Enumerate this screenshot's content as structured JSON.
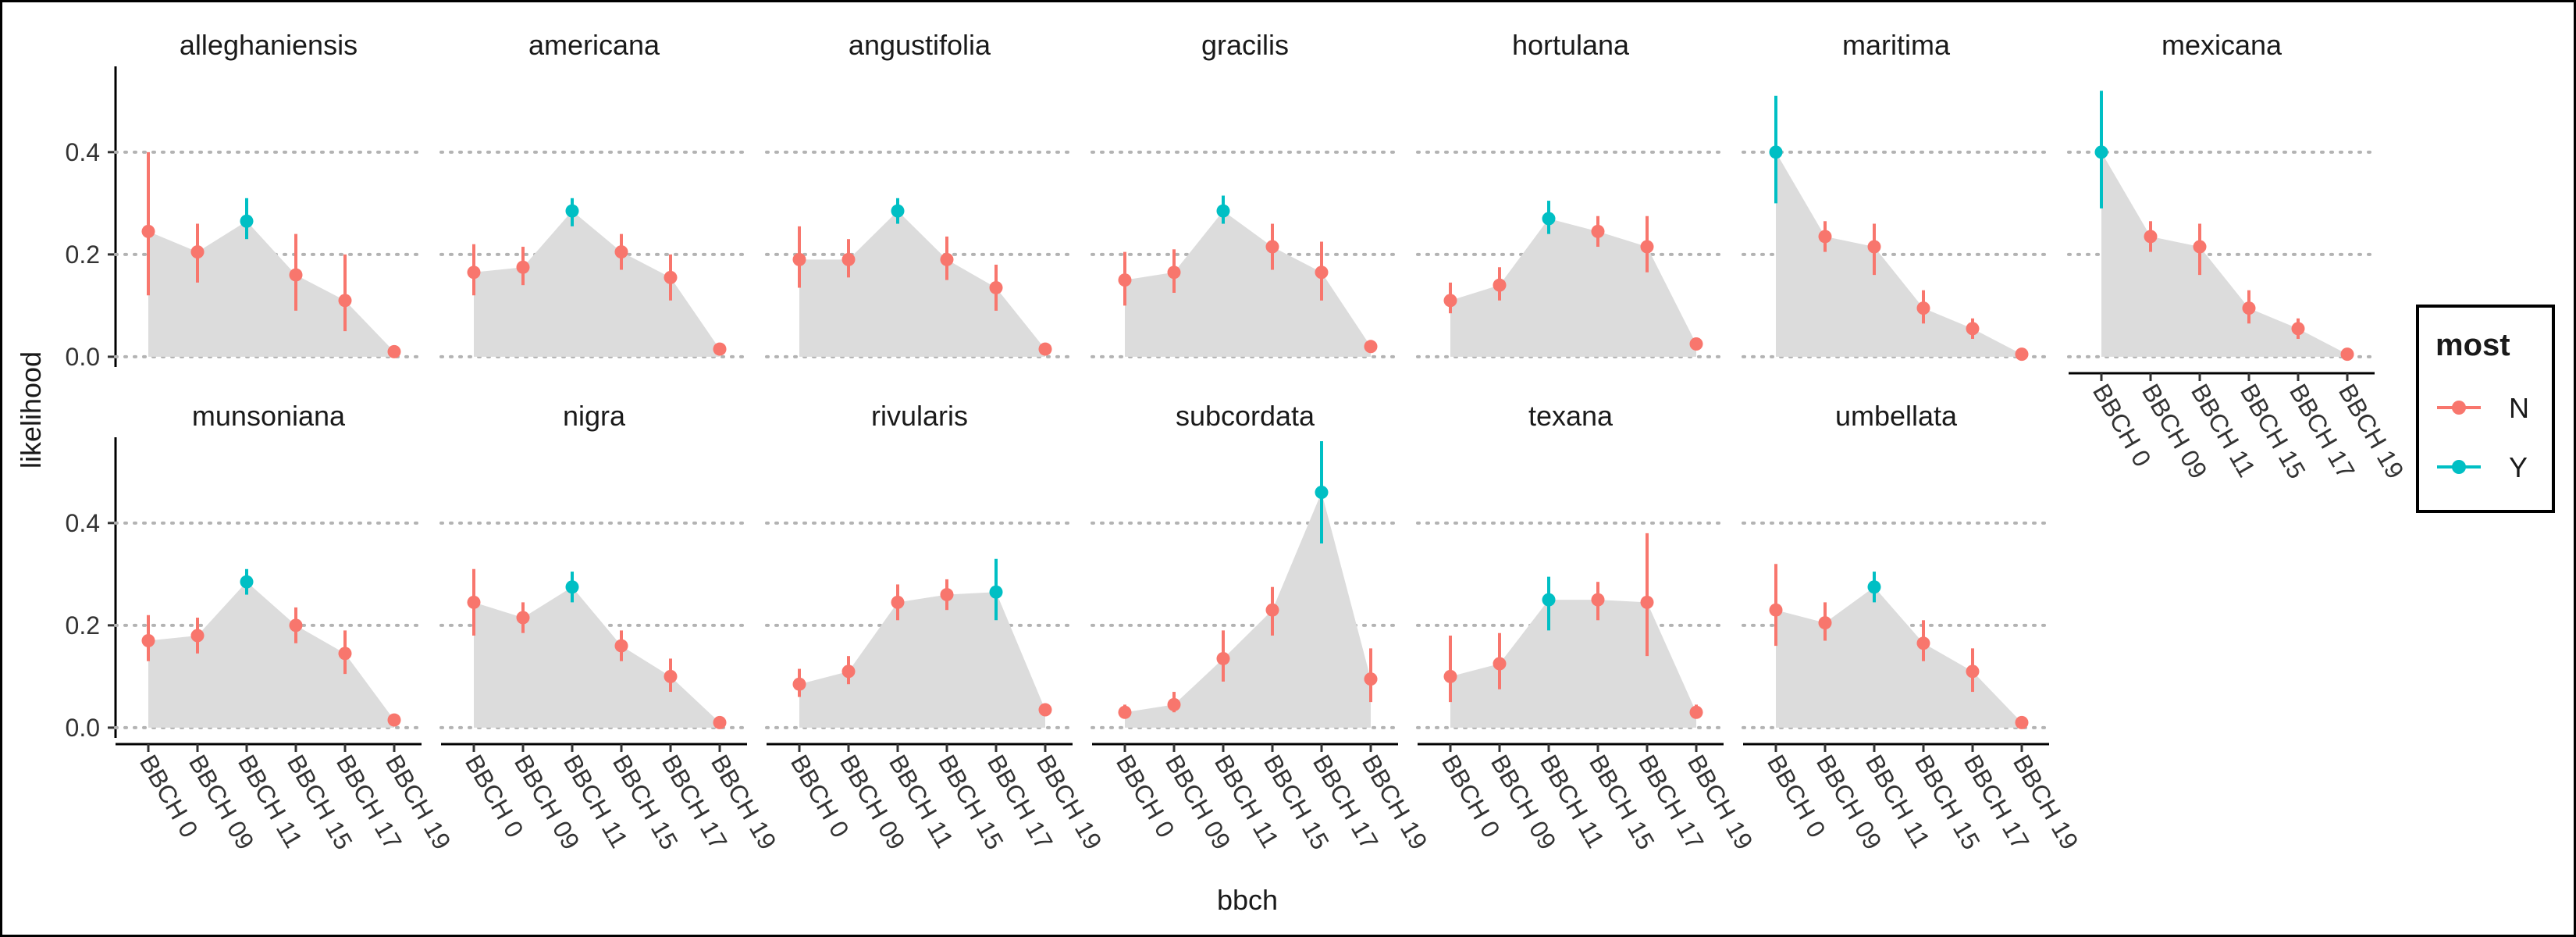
{
  "chart_data": {
    "type": "faceted-dot-range-area",
    "xlabel": "bbch",
    "ylabel": "likelihood",
    "categories": [
      "BBCH 0",
      "BBCH 09",
      "BBCH 11",
      "BBCH 15",
      "BBCH 17",
      "BBCH 19"
    ],
    "y_ticks": [
      "0.0",
      "0.2",
      "0.4"
    ],
    "ylim": [
      -0.02,
      0.56
    ],
    "grid": "dotted horizontal at 0.2 and 0.4",
    "legend": {
      "title": "most",
      "position": "right",
      "entries": [
        {
          "label": "N",
          "color": "#F8766D"
        },
        {
          "label": "Y",
          "color": "#00BFC4"
        }
      ]
    },
    "area_color": "#dcdcdc",
    "facets": [
      {
        "name": "alleghaniensis",
        "values": [
          0.245,
          0.205,
          0.265,
          0.16,
          0.11,
          0.01
        ],
        "lower": [
          0.12,
          0.145,
          0.23,
          0.09,
          0.05,
          0.005
        ],
        "upper": [
          0.4,
          0.26,
          0.31,
          0.24,
          0.2,
          0.015
        ],
        "most": [
          "N",
          "N",
          "Y",
          "N",
          "N",
          "N"
        ]
      },
      {
        "name": "americana",
        "values": [
          0.165,
          0.175,
          0.285,
          0.205,
          0.155,
          0.015
        ],
        "lower": [
          0.12,
          0.14,
          0.255,
          0.17,
          0.11,
          0.01
        ],
        "upper": [
          0.22,
          0.215,
          0.31,
          0.24,
          0.2,
          0.02
        ],
        "most": [
          "N",
          "N",
          "Y",
          "N",
          "N",
          "N"
        ]
      },
      {
        "name": "angustifolia",
        "values": [
          0.19,
          0.19,
          0.285,
          0.19,
          0.135,
          0.015
        ],
        "lower": [
          0.135,
          0.155,
          0.26,
          0.15,
          0.09,
          0.01
        ],
        "upper": [
          0.255,
          0.23,
          0.31,
          0.235,
          0.18,
          0.02
        ],
        "most": [
          "N",
          "N",
          "Y",
          "N",
          "N",
          "N"
        ]
      },
      {
        "name": "gracilis",
        "values": [
          0.15,
          0.165,
          0.285,
          0.215,
          0.165,
          0.02
        ],
        "lower": [
          0.1,
          0.125,
          0.26,
          0.17,
          0.11,
          0.015
        ],
        "upper": [
          0.205,
          0.21,
          0.315,
          0.26,
          0.225,
          0.025
        ],
        "most": [
          "N",
          "N",
          "Y",
          "N",
          "N",
          "N"
        ]
      },
      {
        "name": "hortulana",
        "values": [
          0.11,
          0.14,
          0.27,
          0.245,
          0.215,
          0.025
        ],
        "lower": [
          0.085,
          0.11,
          0.24,
          0.215,
          0.165,
          0.02
        ],
        "upper": [
          0.145,
          0.175,
          0.305,
          0.275,
          0.275,
          0.03
        ],
        "most": [
          "N",
          "N",
          "Y",
          "N",
          "N",
          "N"
        ]
      },
      {
        "name": "maritima",
        "values": [
          0.4,
          0.235,
          0.215,
          0.095,
          0.055,
          0.005
        ],
        "lower": [
          0.3,
          0.205,
          0.16,
          0.065,
          0.035,
          0.002
        ],
        "upper": [
          0.51,
          0.265,
          0.26,
          0.13,
          0.075,
          0.01
        ],
        "most": [
          "Y",
          "N",
          "N",
          "N",
          "N",
          "N"
        ]
      },
      {
        "name": "mexicana",
        "values": [
          0.4,
          0.235,
          0.215,
          0.095,
          0.055,
          0.005
        ],
        "lower": [
          0.29,
          0.205,
          0.16,
          0.065,
          0.035,
          0.002
        ],
        "upper": [
          0.52,
          0.265,
          0.26,
          0.13,
          0.075,
          0.01
        ],
        "most": [
          "Y",
          "N",
          "N",
          "N",
          "N",
          "N"
        ]
      },
      {
        "name": "munsoniana",
        "values": [
          0.17,
          0.18,
          0.285,
          0.2,
          0.145,
          0.015
        ],
        "lower": [
          0.13,
          0.145,
          0.26,
          0.165,
          0.105,
          0.01
        ],
        "upper": [
          0.22,
          0.215,
          0.31,
          0.235,
          0.19,
          0.02
        ],
        "most": [
          "N",
          "N",
          "Y",
          "N",
          "N",
          "N"
        ]
      },
      {
        "name": "nigra",
        "values": [
          0.245,
          0.215,
          0.275,
          0.16,
          0.1,
          0.01
        ],
        "lower": [
          0.18,
          0.185,
          0.245,
          0.13,
          0.07,
          0.005
        ],
        "upper": [
          0.31,
          0.245,
          0.305,
          0.19,
          0.135,
          0.015
        ],
        "most": [
          "N",
          "N",
          "Y",
          "N",
          "N",
          "N"
        ]
      },
      {
        "name": "rivularis",
        "values": [
          0.085,
          0.11,
          0.245,
          0.26,
          0.265,
          0.035
        ],
        "lower": [
          0.06,
          0.085,
          0.21,
          0.23,
          0.21,
          0.025
        ],
        "upper": [
          0.115,
          0.14,
          0.28,
          0.29,
          0.33,
          0.045
        ],
        "most": [
          "N",
          "N",
          "N",
          "N",
          "Y",
          "N"
        ]
      },
      {
        "name": "subcordata",
        "values": [
          0.03,
          0.045,
          0.135,
          0.23,
          0.46,
          0.095
        ],
        "lower": [
          0.02,
          0.03,
          0.09,
          0.18,
          0.36,
          0.05
        ],
        "upper": [
          0.045,
          0.07,
          0.19,
          0.275,
          0.56,
          0.155
        ],
        "most": [
          "N",
          "N",
          "N",
          "N",
          "Y",
          "N"
        ]
      },
      {
        "name": "texana",
        "values": [
          0.1,
          0.125,
          0.25,
          0.25,
          0.245,
          0.03
        ],
        "lower": [
          0.05,
          0.075,
          0.19,
          0.21,
          0.14,
          0.02
        ],
        "upper": [
          0.18,
          0.185,
          0.295,
          0.285,
          0.38,
          0.045
        ],
        "most": [
          "N",
          "N",
          "Y",
          "N",
          "N",
          "N"
        ]
      },
      {
        "name": "umbellata",
        "values": [
          0.23,
          0.205,
          0.275,
          0.165,
          0.11,
          0.01
        ],
        "lower": [
          0.16,
          0.17,
          0.245,
          0.13,
          0.07,
          0.005
        ],
        "upper": [
          0.32,
          0.245,
          0.305,
          0.21,
          0.155,
          0.015
        ],
        "most": [
          "N",
          "N",
          "Y",
          "N",
          "N",
          "N"
        ]
      }
    ]
  }
}
